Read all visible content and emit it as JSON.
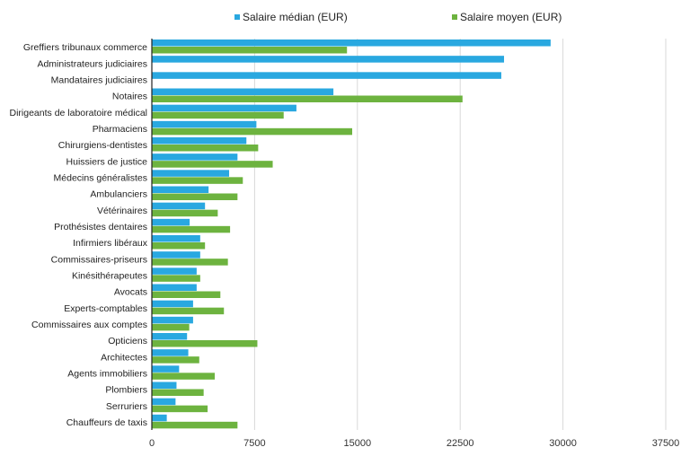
{
  "chart_data": {
    "type": "bar",
    "orientation": "horizontal",
    "title": "",
    "xlabel": "",
    "ylabel": "",
    "xlim": [
      0,
      37500
    ],
    "xticks": [
      "0",
      "7500",
      "15000",
      "22500",
      "30000",
      "37500"
    ],
    "grid": true,
    "legend_position": "top",
    "categories": [
      "Greffiers tribunaux commerce",
      "Administrateurs judiciaires",
      "Mandataires judiciaires",
      "Notaires",
      "Dirigeants de laboratoire médical",
      "Pharmaciens",
      "Chirurgiens-dentistes",
      "Huissiers de justice",
      "Médecins généralistes",
      "Ambulanciers",
      "Vétérinaires",
      "Prothésistes dentaires",
      "Infirmiers libéraux",
      "Commissaires-priseurs",
      "Kinésithérapeutes",
      "Avocats",
      "Experts-comptables",
      "Commissaires aux comptes",
      "Opticiens",
      "Architectes",
      "Agents immobiliers",
      "Plombiers",
      "Serruriers",
      "Chauffeurs de taxis"
    ],
    "series": [
      {
        "name": "Salaire médian (EUR)",
        "color": "#29a8e0",
        "values": [
          29100,
          25700,
          25500,
          13250,
          10550,
          7630,
          6900,
          6250,
          5640,
          4140,
          3880,
          2760,
          3530,
          3530,
          3270,
          3270,
          3010,
          3010,
          2570,
          2660,
          1990,
          1800,
          1730,
          1090
        ]
      },
      {
        "name": "Salaire moyen (EUR)",
        "color": "#6db33f",
        "values": [
          14240,
          null,
          null,
          22670,
          9620,
          14620,
          7760,
          8820,
          6640,
          6250,
          4810,
          5710,
          3880,
          5550,
          3530,
          5000,
          5260,
          2730,
          7700,
          3460,
          4590,
          3780,
          4070,
          6250
        ]
      }
    ]
  }
}
